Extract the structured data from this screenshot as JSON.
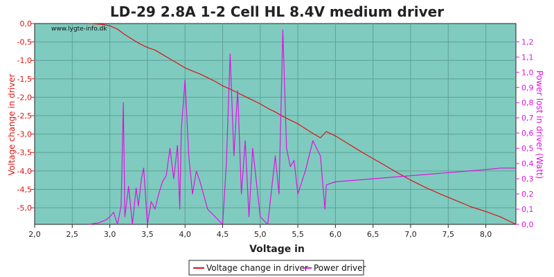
{
  "chart_data": {
    "type": "line",
    "title": "LD-29 2.8A 1-2 Cell HL 8.4V medium driver",
    "watermark": "www.lygte-info.dk",
    "xlabel": "Voltage in",
    "ylabel": "Voltage change in driver",
    "y2label": "Power lost in driver (Watt)",
    "xlim": [
      2.0,
      8.4
    ],
    "ylim": [
      -5.45,
      0.0
    ],
    "y2lim": [
      0.0,
      1.32
    ],
    "x_ticks": [
      "2,0",
      "2,5",
      "3,0",
      "3,5",
      "4,0",
      "4,5",
      "5,0",
      "5,5",
      "6,0",
      "6,5",
      "7,0",
      "7,5",
      "8,0"
    ],
    "y_ticks": [
      "0,0",
      "-0,5",
      "-1,0",
      "-1,5",
      "-2,0",
      "-2,5",
      "-3,0",
      "-3,5",
      "-4,0",
      "-4,5",
      "-5,0"
    ],
    "y2_ticks": [
      "0,0",
      "0,1",
      "0,2",
      "0,3",
      "0,4",
      "0,5",
      "0,6",
      "0,7",
      "0,8",
      "0,9",
      "1,0",
      "1,1",
      "1,2"
    ],
    "plot_background": "#7fcbbf",
    "grid": true,
    "legend_position": "bottom",
    "series": [
      {
        "name": "Voltage change in driver",
        "axis": "left",
        "color": "#e01010",
        "x": [
          2.72,
          2.9,
          3.0,
          3.1,
          3.2,
          3.3,
          3.4,
          3.5,
          3.6,
          3.7,
          3.8,
          3.9,
          4.0,
          4.1,
          4.2,
          4.3,
          4.4,
          4.5,
          4.6,
          4.7,
          4.8,
          4.9,
          5.0,
          5.1,
          5.2,
          5.3,
          5.4,
          5.5,
          5.6,
          5.7,
          5.8,
          5.88,
          6.0,
          6.2,
          6.4,
          6.6,
          6.8,
          7.0,
          7.2,
          7.4,
          7.6,
          7.8,
          8.0,
          8.2,
          8.4
        ],
        "y": [
          0.0,
          -0.02,
          -0.06,
          -0.15,
          -0.3,
          -0.43,
          -0.55,
          -0.65,
          -0.72,
          -0.84,
          -0.96,
          -1.08,
          -1.2,
          -1.29,
          -1.37,
          -1.47,
          -1.57,
          -1.69,
          -1.78,
          -1.88,
          -1.98,
          -2.08,
          -2.18,
          -2.3,
          -2.4,
          -2.52,
          -2.62,
          -2.72,
          -2.85,
          -2.98,
          -3.1,
          -2.93,
          -3.05,
          -3.3,
          -3.55,
          -3.78,
          -4.02,
          -4.25,
          -4.45,
          -4.63,
          -4.8,
          -4.97,
          -5.1,
          -5.25,
          -5.45
        ]
      },
      {
        "name": "Power driver",
        "axis": "right",
        "color": "#e010e0",
        "x": [
          2.72,
          2.85,
          2.95,
          3.0,
          3.05,
          3.1,
          3.15,
          3.18,
          3.2,
          3.25,
          3.3,
          3.35,
          3.38,
          3.42,
          3.45,
          3.5,
          3.55,
          3.6,
          3.65,
          3.7,
          3.75,
          3.8,
          3.85,
          3.9,
          3.93,
          3.95,
          4.0,
          4.05,
          4.1,
          4.15,
          4.2,
          4.3,
          4.4,
          4.5,
          4.55,
          4.6,
          4.65,
          4.7,
          4.75,
          4.8,
          4.85,
          4.9,
          5.0,
          5.1,
          5.2,
          5.25,
          5.3,
          5.35,
          5.4,
          5.45,
          5.5,
          5.6,
          5.7,
          5.8,
          5.86,
          5.88,
          6.0,
          6.5,
          7.0,
          7.5,
          8.0,
          8.2,
          8.4
        ],
        "y": [
          0.0,
          0.01,
          0.03,
          0.05,
          0.08,
          0.0,
          0.12,
          0.8,
          0.05,
          0.25,
          0.0,
          0.24,
          0.12,
          0.3,
          0.37,
          0.0,
          0.15,
          0.1,
          0.2,
          0.28,
          0.32,
          0.5,
          0.3,
          0.52,
          0.1,
          0.62,
          0.95,
          0.45,
          0.2,
          0.35,
          0.28,
          0.1,
          0.05,
          0.0,
          0.4,
          1.12,
          0.45,
          0.88,
          0.2,
          0.55,
          0.05,
          0.5,
          0.05,
          0.0,
          0.45,
          0.2,
          1.28,
          0.5,
          0.38,
          0.42,
          0.2,
          0.35,
          0.55,
          0.45,
          0.1,
          0.26,
          0.28,
          0.3,
          0.32,
          0.34,
          0.36,
          0.37,
          0.37
        ]
      }
    ]
  }
}
